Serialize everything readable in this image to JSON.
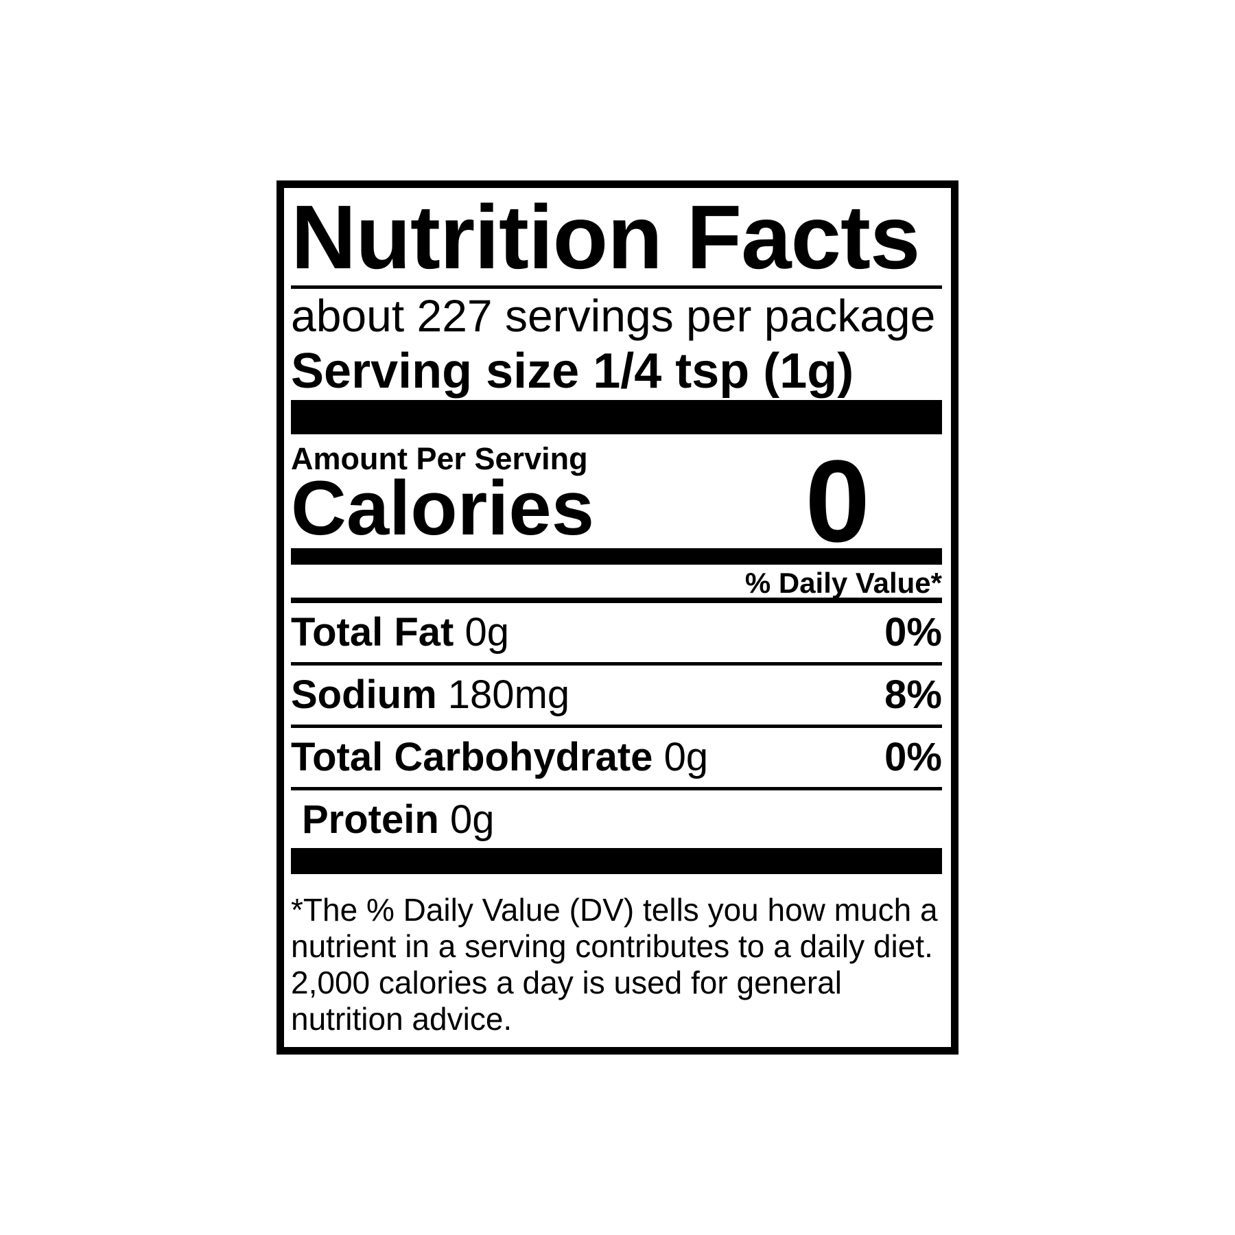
{
  "colors": {
    "ink": "#000000",
    "background": "#ffffff"
  },
  "nutrition_label": {
    "title": "Nutrition Facts",
    "servings_statement": "about 227 servings per package",
    "serving_size_line": "Serving size 1/4 tsp (1g)",
    "amount_per_serving_label": "Amount Per Serving",
    "calories_label": "Calories",
    "calories_value": "0",
    "daily_value_header": "% Daily Value*",
    "nutrients": [
      {
        "name": "Total Fat",
        "amount": "0g",
        "daily_value": "0%"
      },
      {
        "name": "Sodium",
        "amount": "180mg",
        "daily_value": "8%"
      },
      {
        "name": "Total Carbohydrate",
        "amount": "0g",
        "daily_value": "0%"
      },
      {
        "name": "Protein",
        "amount": "0g",
        "daily_value": ""
      }
    ],
    "footnote_lines": [
      "*The % Daily Value (DV) tells you how much a",
      "nutrient in a serving contributes to a daily diet.",
      "2,000 calories a day is used for general",
      "nutrition advice."
    ]
  }
}
